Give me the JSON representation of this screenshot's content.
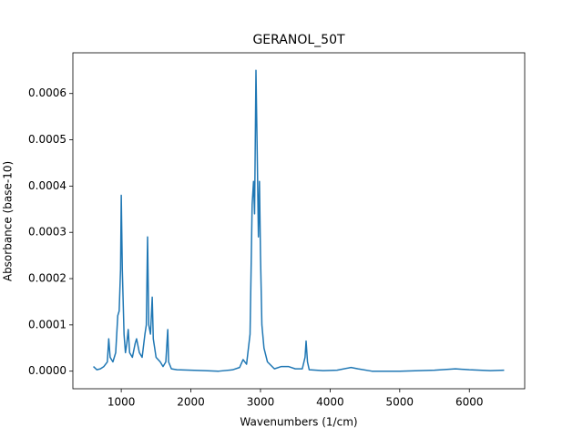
{
  "chart_data": {
    "type": "line",
    "title": "GERANOL_50T",
    "x_label": "Wavenumbers (1/cm)",
    "y_label": "Absorbance (base-10)",
    "x": [
      600,
      650,
      700,
      750,
      800,
      820,
      840,
      880,
      920,
      950,
      970,
      990,
      1000,
      1015,
      1040,
      1060,
      1080,
      1100,
      1120,
      1160,
      1200,
      1220,
      1260,
      1300,
      1340,
      1360,
      1378,
      1395,
      1420,
      1445,
      1460,
      1500,
      1560,
      1600,
      1640,
      1668,
      1680,
      1720,
      1800,
      2000,
      2200,
      2400,
      2600,
      2700,
      2750,
      2800,
      2850,
      2880,
      2900,
      2915,
      2935,
      2955,
      2970,
      2985,
      3000,
      3020,
      3050,
      3100,
      3200,
      3300,
      3400,
      3500,
      3600,
      3640,
      3655,
      3675,
      3700,
      3900,
      4100,
      4300,
      4400,
      4600,
      5000,
      5500,
      5800,
      6000,
      6300,
      6500
    ],
    "series": [
      {
        "color": "#1f77b4",
        "values": [
          1e-05,
          3e-06,
          5e-06,
          1e-05,
          2e-05,
          7e-05,
          3e-05,
          2e-05,
          4e-05,
          0.00012,
          0.00013,
          0.00022,
          0.00038,
          0.00022,
          8e-05,
          4e-05,
          6e-05,
          9e-05,
          4e-05,
          3e-05,
          6e-05,
          7e-05,
          4e-05,
          3e-05,
          8e-05,
          0.0001,
          0.00029,
          0.0001,
          8e-05,
          0.00016,
          7e-05,
          3e-05,
          2e-05,
          1e-05,
          2e-05,
          9e-05,
          2e-05,
          5e-06,
          3e-06,
          2e-06,
          1e-06,
          0,
          3e-06,
          8e-06,
          2.5e-05,
          1.5e-05,
          8e-05,
          0.00036,
          0.00041,
          0.00034,
          0.00065,
          0.00045,
          0.00029,
          0.00041,
          0.00025,
          0.0001,
          5e-05,
          2e-05,
          5e-06,
          1e-05,
          1e-05,
          5e-06,
          5e-06,
          3e-05,
          6.5e-05,
          2e-05,
          3e-06,
          1e-06,
          2e-06,
          8e-06,
          5e-06,
          0,
          0,
          2e-06,
          5e-06,
          3e-06,
          1e-06,
          2e-06
        ]
      }
    ],
    "xlim": [
      305,
      6795
    ],
    "xticks": [
      1000,
      2000,
      3000,
      4000,
      5000,
      6000
    ],
    "ylim": [
      -3.8e-05,
      0.000688
    ],
    "yticks": [
      {
        "value": 0,
        "label": "0.0000"
      },
      {
        "value": 0.0001,
        "label": "0.0001"
      },
      {
        "value": 0.0002,
        "label": "0.0002"
      },
      {
        "value": 0.0003,
        "label": "0.0003"
      },
      {
        "value": 0.0004,
        "label": "0.0004"
      },
      {
        "value": 0.0005,
        "label": "0.0005"
      },
      {
        "value": 0.0006,
        "label": "0.0006"
      }
    ],
    "grid": false
  }
}
